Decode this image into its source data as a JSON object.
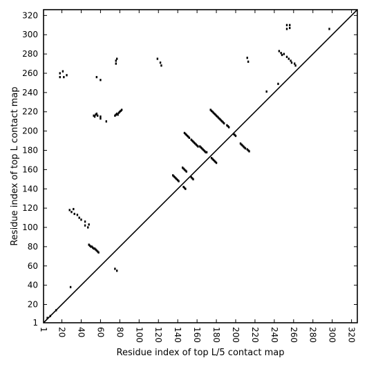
{
  "chart_data": {
    "type": "scatter",
    "title": "",
    "xlabel": "Residue index of top L/5 contact map",
    "ylabel": "Residue index of top L contact map",
    "xlim": [
      1,
      326
    ],
    "ylim": [
      1,
      326
    ],
    "x_ticks": [
      1,
      20,
      40,
      60,
      80,
      100,
      120,
      140,
      160,
      180,
      200,
      220,
      240,
      260,
      280,
      300,
      320
    ],
    "y_ticks": [
      1,
      20,
      40,
      60,
      80,
      100,
      120,
      140,
      160,
      180,
      200,
      220,
      240,
      260,
      280,
      300,
      320
    ],
    "x_tick_rotation": 90,
    "grid": false,
    "diagonal_line": true,
    "marker_color": "#000000",
    "series": [
      {
        "points": [
          [
            18,
            256
          ],
          [
            18,
            260
          ],
          [
            21,
            262
          ],
          [
            22,
            256
          ],
          [
            25,
            258
          ],
          [
            56,
            256
          ],
          [
            60,
            253
          ],
          [
            76,
            270
          ],
          [
            76,
            273
          ],
          [
            77,
            275
          ],
          [
            119,
            275
          ],
          [
            122,
            271
          ],
          [
            123,
            268
          ],
          [
            66,
            210
          ],
          [
            60,
            213
          ],
          [
            60,
            215
          ],
          [
            53,
            216
          ],
          [
            54,
            215
          ],
          [
            55,
            217
          ],
          [
            56,
            218
          ],
          [
            57,
            216
          ],
          [
            75,
            216
          ],
          [
            76,
            217
          ],
          [
            77,
            218
          ],
          [
            78,
            217
          ],
          [
            79,
            219
          ],
          [
            80,
            220
          ],
          [
            81,
            221
          ],
          [
            82,
            222
          ],
          [
            47,
            100
          ],
          [
            48,
            103
          ],
          [
            44,
            102
          ],
          [
            44,
            106
          ],
          [
            40,
            108
          ],
          [
            38,
            110
          ],
          [
            36,
            113
          ],
          [
            33,
            114
          ],
          [
            30,
            116
          ],
          [
            28,
            118
          ],
          [
            32,
            119
          ],
          [
            29,
            38
          ],
          [
            75,
            57
          ],
          [
            77,
            55
          ],
          [
            48,
            82
          ],
          [
            49,
            81
          ],
          [
            50,
            80
          ],
          [
            51,
            80
          ],
          [
            52,
            79
          ],
          [
            53,
            78
          ],
          [
            54,
            78
          ],
          [
            55,
            77
          ],
          [
            56,
            76
          ],
          [
            57,
            75
          ],
          [
            58,
            74
          ],
          [
            14,
            14
          ],
          [
            8,
            8
          ],
          [
            5,
            6
          ],
          [
            147,
            198
          ],
          [
            148,
            197
          ],
          [
            149,
            196
          ],
          [
            150,
            195
          ],
          [
            151,
            194
          ],
          [
            152,
            193
          ],
          [
            154,
            191
          ],
          [
            155,
            190
          ],
          [
            156,
            189
          ],
          [
            157,
            188
          ],
          [
            158,
            187
          ],
          [
            159,
            186
          ],
          [
            160,
            185
          ],
          [
            161,
            184
          ],
          [
            163,
            184
          ],
          [
            164,
            183
          ],
          [
            165,
            182
          ],
          [
            166,
            181
          ],
          [
            167,
            180
          ],
          [
            168,
            179
          ],
          [
            169,
            178
          ],
          [
            170,
            178
          ],
          [
            174,
            222
          ],
          [
            175,
            221
          ],
          [
            176,
            220
          ],
          [
            177,
            219
          ],
          [
            178,
            218
          ],
          [
            179,
            217
          ],
          [
            180,
            216
          ],
          [
            181,
            215
          ],
          [
            182,
            214
          ],
          [
            183,
            213
          ],
          [
            184,
            212
          ],
          [
            185,
            211
          ],
          [
            186,
            210
          ],
          [
            187,
            209
          ],
          [
            188,
            208
          ],
          [
            191,
            206
          ],
          [
            192,
            205
          ],
          [
            193,
            204
          ],
          [
            198,
            197
          ],
          [
            199,
            196
          ],
          [
            200,
            195
          ],
          [
            205,
            187
          ],
          [
            206,
            186
          ],
          [
            207,
            185
          ],
          [
            208,
            184
          ],
          [
            209,
            183
          ],
          [
            210,
            182
          ],
          [
            212,
            181
          ],
          [
            213,
            180
          ],
          [
            214,
            179
          ],
          [
            175,
            172
          ],
          [
            176,
            171
          ],
          [
            177,
            170
          ],
          [
            178,
            169
          ],
          [
            179,
            168
          ],
          [
            180,
            167
          ],
          [
            145,
            162
          ],
          [
            146,
            161
          ],
          [
            147,
            160
          ],
          [
            148,
            159
          ],
          [
            149,
            158
          ],
          [
            135,
            154
          ],
          [
            136,
            153
          ],
          [
            137,
            152
          ],
          [
            138,
            151
          ],
          [
            139,
            150
          ],
          [
            140,
            149
          ],
          [
            141,
            148
          ],
          [
            154,
            152
          ],
          [
            155,
            151
          ],
          [
            156,
            150
          ],
          [
            146,
            142
          ],
          [
            147,
            141
          ],
          [
            148,
            140
          ],
          [
            244,
            249
          ],
          [
            232,
            241
          ],
          [
            212,
            276
          ],
          [
            213,
            272
          ],
          [
            245,
            283
          ],
          [
            247,
            281
          ],
          [
            248,
            279
          ],
          [
            250,
            280
          ],
          [
            253,
            277
          ],
          [
            255,
            275
          ],
          [
            257,
            273
          ],
          [
            258,
            271
          ],
          [
            261,
            270
          ],
          [
            262,
            268
          ],
          [
            253,
            306
          ],
          [
            253,
            310
          ],
          [
            256,
            307
          ],
          [
            256,
            310
          ],
          [
            297,
            306
          ]
        ]
      }
    ]
  }
}
